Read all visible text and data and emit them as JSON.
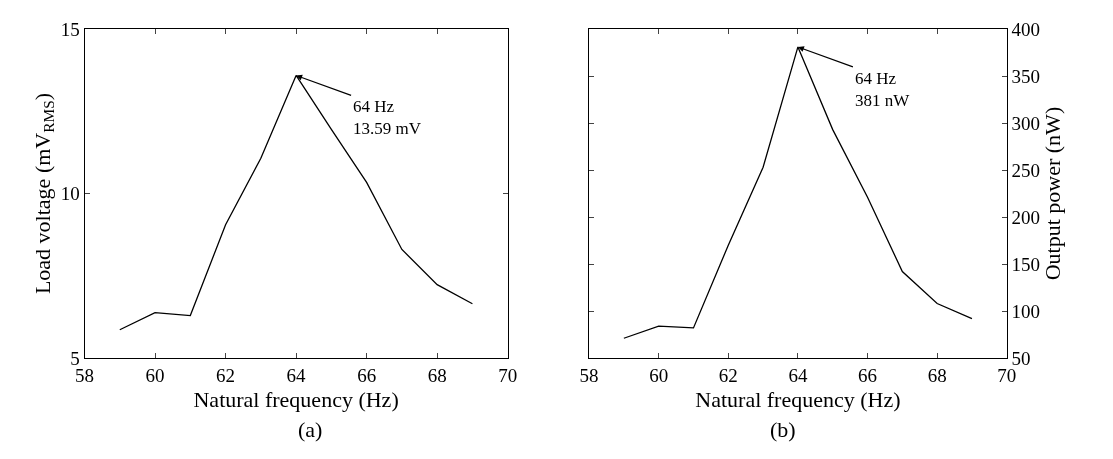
{
  "chart_data": [
    {
      "type": "line",
      "xlabel": "Natural frequency (Hz)",
      "ylabel": "Load voltage (mV$_{RMS}$)",
      "x": [
        59,
        60,
        61,
        62,
        63,
        64,
        65,
        66,
        67,
        68,
        69
      ],
      "series": [
        {
          "color": "#000000",
          "values": [
            5.86,
            6.38,
            6.29,
            9.05,
            11.07,
            13.59,
            11.95,
            10.34,
            8.3,
            7.23,
            6.65
          ]
        }
      ],
      "xlim": [
        58,
        70
      ],
      "xticks": [
        58,
        60,
        62,
        64,
        66,
        68,
        70
      ],
      "ylim": [
        5,
        15
      ],
      "yticks": [
        5,
        10,
        15
      ],
      "annotations": [
        {
          "text": "64 Hz\n13.59 mV",
          "x": 64,
          "y": 13.59
        },
        "(a)"
      ]
    },
    {
      "type": "line",
      "xlabel": "Natural frequency (Hz)",
      "ylabel": "Output power (nW)",
      "x": [
        59,
        60,
        61,
        62,
        63,
        64,
        65,
        66,
        67,
        68,
        69
      ],
      "series": [
        {
          "color": "#000000",
          "values": [
            71,
            84,
            82,
            170,
            253,
            381,
            293,
            221,
            142,
            108,
            92
          ]
        }
      ],
      "xlim": [
        58,
        70
      ],
      "xticks": [
        58,
        60,
        62,
        64,
        66,
        68,
        70
      ],
      "ylim": [
        50,
        400
      ],
      "yticks": [
        50,
        100,
        150,
        200,
        250,
        300,
        350,
        400
      ],
      "annotations": [
        {
          "text": "64 Hz\n381 nW",
          "x": 64,
          "y": 381
        },
        "(b)"
      ]
    }
  ]
}
